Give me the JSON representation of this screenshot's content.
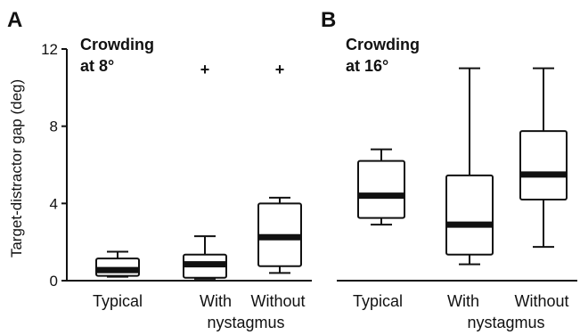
{
  "chart_data": [
    {
      "type": "box",
      "panel_label": "A",
      "annotation_lines": [
        "Crowding",
        "at 8°"
      ],
      "ylabel": "Target-distractor gap (deg)",
      "ylim": [
        0,
        12
      ],
      "yticks": [
        0,
        4,
        8,
        12
      ],
      "categories": [
        {
          "lines": [
            "Typical"
          ]
        },
        {
          "lines": [
            "With"
          ]
        },
        {
          "lines": [
            "Without"
          ]
        }
      ],
      "shared_label": "nystagmus",
      "boxes": [
        {
          "min": 0.2,
          "q1": 0.25,
          "median": 0.55,
          "q3": 1.15,
          "max": 1.5,
          "outlier_marker": ""
        },
        {
          "min": 0.1,
          "q1": 0.15,
          "median": 0.85,
          "q3": 1.35,
          "max": 2.3,
          "outlier_marker": "+"
        },
        {
          "min": 0.4,
          "q1": 0.75,
          "median": 2.25,
          "q3": 4.0,
          "max": 4.3,
          "outlier_marker": "+"
        }
      ]
    },
    {
      "type": "box",
      "panel_label": "B",
      "annotation_lines": [
        "Crowding",
        "at 16°"
      ],
      "ylim": [
        0,
        12
      ],
      "categories": [
        {
          "lines": [
            "Typical"
          ]
        },
        {
          "lines": [
            "With"
          ]
        },
        {
          "lines": [
            "Without"
          ]
        }
      ],
      "shared_label": "nystagmus",
      "boxes": [
        {
          "min": 2.9,
          "q1": 3.25,
          "median": 4.4,
          "q3": 6.2,
          "max": 6.8,
          "outlier_marker": ""
        },
        {
          "min": 0.85,
          "q1": 1.35,
          "median": 2.9,
          "q3": 5.45,
          "max": 11.0,
          "outlier_marker": ""
        },
        {
          "min": 1.75,
          "q1": 4.2,
          "median": 5.5,
          "q3": 7.75,
          "max": 11.0,
          "outlier_marker": ""
        }
      ]
    }
  ]
}
